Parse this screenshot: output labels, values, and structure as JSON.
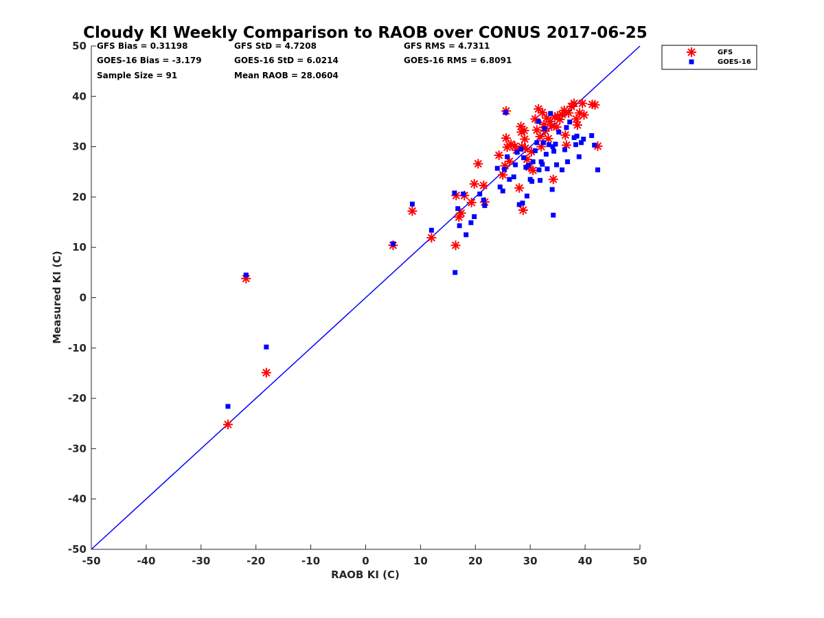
{
  "colors": {
    "gfs": "#ff0000",
    "goes16": "#0000ff",
    "reference_line": "#0000ff",
    "axis": "#262626"
  },
  "stats": {
    "gfs_bias": "GFS Bias = 0.31198",
    "gfs_std": "GFS StD = 4.7208",
    "gfs_rms": "GFS RMS = 4.7311",
    "goes_bias": "GOES-16 Bias = -3.179",
    "goes_std": "GOES-16 StD = 6.0214",
    "goes_rms": "GOES-16 RMS = 6.8091",
    "sample_size": "Sample Size = 91",
    "mean_raob": "Mean RAOB = 28.0604"
  },
  "chart_data": {
    "type": "scatter",
    "title": "Cloudy KI Weekly Comparison to RAOB over CONUS 2017-06-25",
    "xlabel": "RAOB KI (C)",
    "ylabel": "Measured KI (C)",
    "xlim": [
      -50,
      50
    ],
    "ylim": [
      -50,
      50
    ],
    "xticks": [
      "-50",
      "-40",
      "-30",
      "-20",
      "-10",
      "0",
      "10",
      "20",
      "30",
      "40",
      "50"
    ],
    "yticks": [
      "-50",
      "-40",
      "-30",
      "-20",
      "-10",
      "0",
      "10",
      "20",
      "30",
      "40",
      "50"
    ],
    "grid": false,
    "legend_position": "top-right outside",
    "reference_line": {
      "from": [
        -50,
        -50
      ],
      "to": [
        50,
        50
      ]
    },
    "series": [
      {
        "name": "GFS",
        "marker": "asterisk",
        "points": [
          [
            -25.1,
            -25.2
          ],
          [
            -21.8,
            3.8
          ],
          [
            -18.1,
            -14.9
          ],
          [
            5.0,
            10.4
          ],
          [
            8.5,
            17.2
          ],
          [
            12.0,
            11.9
          ],
          [
            16.4,
            10.4
          ],
          [
            16.5,
            20.3
          ],
          [
            17.0,
            16.0
          ],
          [
            17.4,
            16.8
          ],
          [
            18.0,
            20.3
          ],
          [
            19.3,
            18.9
          ],
          [
            19.8,
            22.6
          ],
          [
            20.5,
            26.6
          ],
          [
            21.5,
            22.3
          ],
          [
            21.7,
            19.0
          ],
          [
            24.3,
            28.3
          ],
          [
            25.0,
            24.4
          ],
          [
            25.4,
            26.2
          ],
          [
            25.6,
            37.1
          ],
          [
            25.6,
            31.7
          ],
          [
            25.8,
            29.9
          ],
          [
            26.2,
            27.1
          ],
          [
            26.5,
            30.5
          ],
          [
            27.2,
            30.1
          ],
          [
            27.5,
            29.3
          ],
          [
            28.0,
            21.8
          ],
          [
            28.3,
            34.0
          ],
          [
            28.4,
            32.9
          ],
          [
            28.5,
            30.0
          ],
          [
            28.7,
            17.4
          ],
          [
            28.9,
            33.2
          ],
          [
            29.0,
            31.5
          ],
          [
            29.1,
            29.7
          ],
          [
            29.4,
            27.5
          ],
          [
            29.8,
            25.9
          ],
          [
            30.2,
            29.0
          ],
          [
            30.5,
            25.3
          ],
          [
            30.9,
            35.5
          ],
          [
            31.2,
            33.3
          ],
          [
            31.5,
            37.5
          ],
          [
            31.8,
            32.0
          ],
          [
            32.0,
            30.0
          ],
          [
            32.2,
            36.8
          ],
          [
            32.5,
            34.4
          ],
          [
            32.7,
            33.1
          ],
          [
            33.0,
            35.7
          ],
          [
            33.3,
            31.6
          ],
          [
            33.6,
            35.0
          ],
          [
            33.9,
            34.1
          ],
          [
            34.2,
            23.5
          ],
          [
            34.5,
            35.9
          ],
          [
            34.8,
            33.9
          ],
          [
            35.0,
            36.1
          ],
          [
            35.4,
            35.4
          ],
          [
            35.8,
            36.4
          ],
          [
            36.2,
            37.2
          ],
          [
            36.4,
            32.3
          ],
          [
            36.6,
            30.3
          ],
          [
            37.0,
            36.7
          ],
          [
            37.5,
            38.0
          ],
          [
            38.0,
            38.6
          ],
          [
            38.4,
            35.5
          ],
          [
            38.6,
            34.3
          ],
          [
            39.0,
            36.7
          ],
          [
            39.5,
            38.6
          ],
          [
            39.8,
            36.3
          ],
          [
            41.3,
            38.4
          ],
          [
            41.8,
            38.3
          ],
          [
            42.3,
            30.1
          ]
        ]
      },
      {
        "name": "GOES-16",
        "marker": "square",
        "points": [
          [
            -25.1,
            -21.6
          ],
          [
            -21.8,
            4.5
          ],
          [
            -18.1,
            -9.8
          ],
          [
            5.0,
            10.7
          ],
          [
            8.5,
            18.6
          ],
          [
            12.0,
            13.4
          ],
          [
            16.3,
            5.0
          ],
          [
            16.2,
            20.8
          ],
          [
            16.8,
            17.7
          ],
          [
            17.1,
            14.3
          ],
          [
            17.8,
            20.6
          ],
          [
            18.3,
            12.5
          ],
          [
            19.2,
            14.9
          ],
          [
            19.8,
            16.1
          ],
          [
            20.8,
            20.6
          ],
          [
            21.5,
            19.4
          ],
          [
            21.7,
            18.3
          ],
          [
            24.0,
            25.7
          ],
          [
            24.5,
            22.0
          ],
          [
            25.0,
            21.2
          ],
          [
            25.3,
            25.5
          ],
          [
            25.5,
            36.8
          ],
          [
            25.8,
            28.0
          ],
          [
            26.2,
            23.5
          ],
          [
            27.0,
            24.0
          ],
          [
            27.3,
            26.4
          ],
          [
            27.6,
            28.9
          ],
          [
            28.0,
            18.5
          ],
          [
            28.3,
            29.5
          ],
          [
            28.6,
            18.8
          ],
          [
            28.8,
            27.8
          ],
          [
            29.2,
            25.9
          ],
          [
            29.4,
            20.2
          ],
          [
            29.7,
            26.3
          ],
          [
            30.0,
            23.5
          ],
          [
            30.3,
            23.1
          ],
          [
            30.5,
            27.0
          ],
          [
            30.9,
            29.2
          ],
          [
            31.2,
            30.8
          ],
          [
            31.5,
            35.0
          ],
          [
            31.6,
            25.4
          ],
          [
            31.8,
            23.3
          ],
          [
            32.0,
            27.0
          ],
          [
            32.2,
            26.5
          ],
          [
            32.4,
            30.8
          ],
          [
            32.6,
            33.6
          ],
          [
            32.9,
            28.5
          ],
          [
            33.1,
            25.6
          ],
          [
            33.4,
            30.4
          ],
          [
            33.7,
            36.6
          ],
          [
            34.0,
            21.5
          ],
          [
            34.2,
            16.4
          ],
          [
            34.1,
            30.0
          ],
          [
            34.3,
            29.1
          ],
          [
            34.6,
            30.5
          ],
          [
            34.8,
            26.4
          ],
          [
            35.2,
            32.9
          ],
          [
            35.8,
            25.4
          ],
          [
            36.3,
            29.4
          ],
          [
            36.6,
            33.8
          ],
          [
            36.8,
            27.0
          ],
          [
            37.2,
            34.9
          ],
          [
            38.0,
            31.8
          ],
          [
            38.3,
            30.4
          ],
          [
            38.5,
            32.1
          ],
          [
            38.9,
            28.0
          ],
          [
            39.3,
            30.8
          ],
          [
            39.7,
            31.5
          ],
          [
            41.2,
            32.2
          ],
          [
            41.7,
            30.3
          ],
          [
            42.3,
            25.4
          ]
        ]
      }
    ]
  }
}
